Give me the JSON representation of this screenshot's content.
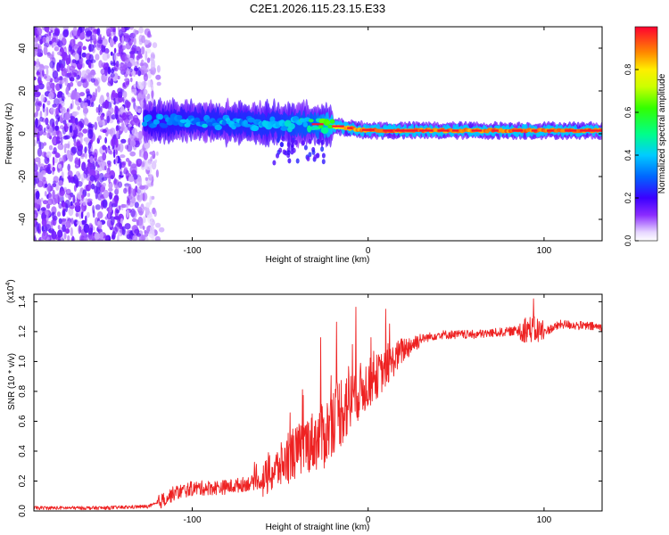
{
  "title": "C2E1.2026.115.23.15.E33",
  "chart_data": [
    {
      "type": "heatmap",
      "name": "spectrogram",
      "xlabel": "Height of straight line (km)",
      "ylabel": "Frequency (Hz)",
      "xlim": [
        -190,
        133
      ],
      "ylim": [
        -50,
        50
      ],
      "xticks": [
        -100,
        0,
        100
      ],
      "xtick_labels": [
        "-100",
        "0",
        "100"
      ],
      "yticks": [
        -40,
        -20,
        0,
        20,
        40
      ],
      "ytick_labels": [
        "-40",
        "-20",
        "0",
        "20",
        "40"
      ],
      "noise_region_x": [
        -190,
        -117
      ],
      "signal_band": [
        {
          "x": -125,
          "f": 5.5,
          "amp": 0.35
        },
        {
          "x": -100,
          "f": 6,
          "amp": 0.4
        },
        {
          "x": -75,
          "f": 5,
          "amp": 0.42
        },
        {
          "x": -50,
          "f": 4.5,
          "amp": 0.45
        },
        {
          "x": -30,
          "f": 4.5,
          "amp": 0.55
        },
        {
          "x": -20,
          "f": 3.5,
          "amp": 0.8
        },
        {
          "x": -10,
          "f": 2.5,
          "amp": 0.9
        },
        {
          "x": 0,
          "f": 1.5,
          "amp": 0.95
        },
        {
          "x": 50,
          "f": 1.5,
          "amp": 0.92
        },
        {
          "x": 100,
          "f": 1.5,
          "amp": 0.95
        },
        {
          "x": 133,
          "f": 1.5,
          "amp": 0.95
        }
      ],
      "colorbar": {
        "label": "Normalized spectral amplitude",
        "range": [
          0,
          1
        ],
        "ticks": [
          0,
          0.2,
          0.4,
          0.6,
          0.8
        ],
        "tick_labels": [
          "0.0",
          "0.2",
          "0.4",
          "0.6",
          "0.8"
        ]
      }
    },
    {
      "type": "line",
      "name": "snr",
      "xlabel": "Height of straight line (km)",
      "ylabel": "SNR (10 * v/v)",
      "scale_note": "(x10",
      "scale_exp": "4",
      "xlim": [
        -190,
        133
      ],
      "ylim": [
        0,
        1.45
      ],
      "xticks": [
        -100,
        0,
        100
      ],
      "xtick_labels": [
        "-100",
        "0",
        "100"
      ],
      "yticks": [
        0,
        0.2,
        0.4,
        0.6,
        0.8,
        1.0,
        1.2,
        1.4
      ],
      "ytick_labels": [
        "0.0",
        "0.2",
        "0.4",
        "0.6",
        "0.8",
        "1.0",
        "1.2",
        "1.4"
      ],
      "color": "#ee2222",
      "series": [
        {
          "name": "SNR",
          "x": [
            -190,
            -150,
            -125,
            -120,
            -110,
            -100,
            -80,
            -60,
            -45,
            -35,
            -25,
            -20,
            -10,
            0,
            10,
            20,
            30,
            40,
            60,
            80,
            90,
            100,
            110,
            120,
            133
          ],
          "y": [
            0.02,
            0.02,
            0.03,
            0.05,
            0.12,
            0.15,
            0.16,
            0.2,
            0.35,
            0.45,
            0.5,
            0.62,
            0.75,
            0.85,
            0.95,
            1.08,
            1.15,
            1.18,
            1.18,
            1.2,
            1.22,
            1.2,
            1.25,
            1.24,
            1.23
          ]
        }
      ],
      "peaks": [
        {
          "x": -27,
          "y": 1.16
        },
        {
          "x": 10,
          "y": 1.35
        },
        {
          "x": 94,
          "y": 1.42
        }
      ]
    }
  ]
}
